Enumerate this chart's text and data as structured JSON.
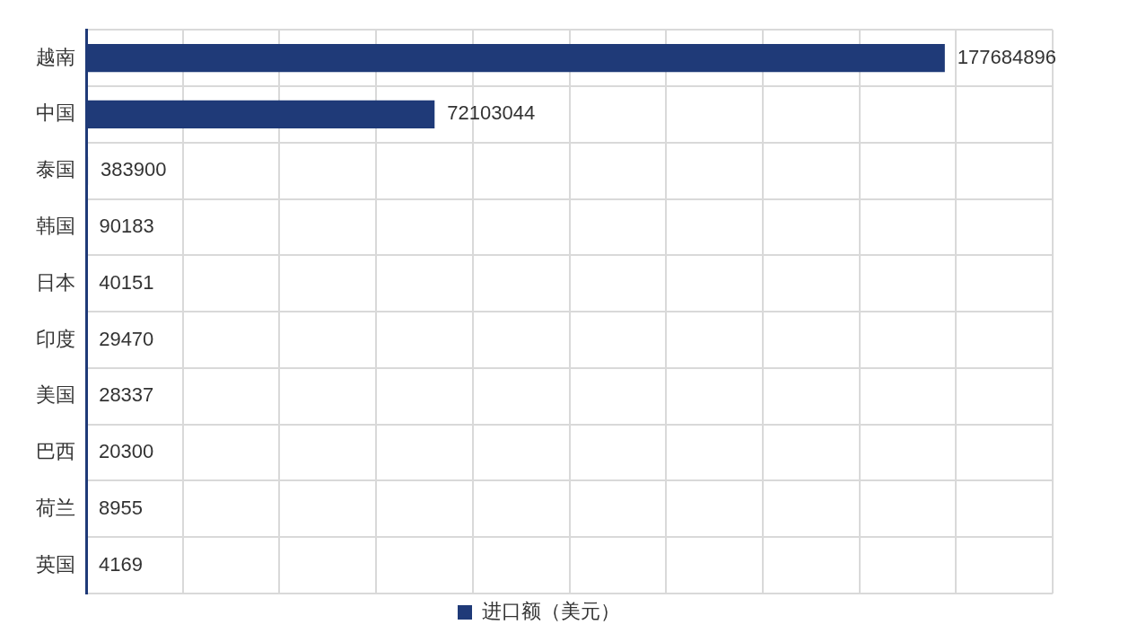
{
  "chart_data": {
    "type": "bar",
    "orientation": "horizontal",
    "categories": [
      "越南",
      "中国",
      "泰国",
      "韩国",
      "日本",
      "印度",
      "美国",
      "巴西",
      "荷兰",
      "英国"
    ],
    "series": [
      {
        "name": "进口额（美元）",
        "color": "#1f3a78",
        "values": [
          177684896,
          72103044,
          383900,
          90183,
          40151,
          29470,
          28337,
          20300,
          8955,
          4169
        ]
      }
    ],
    "xlim": [
      0,
      200000000
    ],
    "xticks": [
      {
        "value": 0,
        "label": null
      },
      {
        "value": 20000000,
        "label": null
      },
      {
        "value": 40000000,
        "label": null
      },
      {
        "value": 60000000,
        "label": null
      },
      {
        "value": 80000000,
        "label": null
      },
      {
        "value": 100000000,
        "label": null
      },
      {
        "value": 120000000,
        "label": null
      },
      {
        "value": 140000000,
        "label": null
      },
      {
        "value": 160000000,
        "label": null
      },
      {
        "value": 180000000,
        "label": null
      },
      {
        "value": 200000000,
        "label": null
      }
    ],
    "tick_labels": "y",
    "grid": true,
    "data_labels": true,
    "legend": "bottom"
  }
}
